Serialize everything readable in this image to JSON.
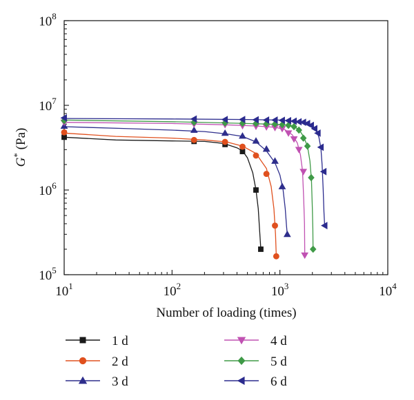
{
  "chart_data": {
    "type": "line",
    "xlabel": "Number of loading (times)",
    "ylabel": "G* (Pa)",
    "ylabel_parts": {
      "symbol": "G",
      "sup": "*",
      "unit": " (Pa)"
    },
    "x_scale": "log",
    "y_scale": "log",
    "xlim": [
      10,
      10000
    ],
    "ylim": [
      100000,
      100000000
    ],
    "x_ticks": [
      {
        "value": 10,
        "base": "10",
        "exp": "1"
      },
      {
        "value": 100,
        "base": "10",
        "exp": "2"
      },
      {
        "value": 1000,
        "base": "10",
        "exp": "3"
      },
      {
        "value": 10000,
        "base": "10",
        "exp": "4"
      }
    ],
    "y_ticks": [
      {
        "value": 100000,
        "base": "10",
        "exp": "5"
      },
      {
        "value": 1000000,
        "base": "10",
        "exp": "6"
      },
      {
        "value": 10000000,
        "base": "10",
        "exp": "7"
      },
      {
        "value": 100000000,
        "base": "10",
        "exp": "8"
      }
    ],
    "grid": false,
    "legend_position": "bottom",
    "series": [
      {
        "name": "1 d",
        "color": "#1a1a1a",
        "marker": "square",
        "curve": [
          [
            10,
            4200000
          ],
          [
            30,
            3900000
          ],
          [
            100,
            3800000
          ],
          [
            200,
            3750000
          ],
          [
            300,
            3550000
          ],
          [
            400,
            3150000
          ],
          [
            450,
            2900000
          ],
          [
            500,
            2400000
          ],
          [
            560,
            1600000
          ],
          [
            600,
            1000000
          ],
          [
            630,
            600000
          ],
          [
            650,
            320000
          ],
          [
            665,
            200000
          ]
        ],
        "markers": [
          [
            10,
            4200000
          ],
          [
            160,
            3750000
          ],
          [
            310,
            3450000
          ],
          [
            450,
            2850000
          ],
          [
            600,
            1000000
          ],
          [
            665,
            200000
          ]
        ]
      },
      {
        "name": "2 d",
        "color": "#e0501e",
        "marker": "circle",
        "curve": [
          [
            10,
            4700000
          ],
          [
            30,
            4300000
          ],
          [
            100,
            4100000
          ],
          [
            200,
            3900000
          ],
          [
            320,
            3700000
          ],
          [
            450,
            3300000
          ],
          [
            600,
            2700000
          ],
          [
            750,
            1800000
          ],
          [
            830,
            1100000
          ],
          [
            880,
            600000
          ],
          [
            910,
            300000
          ],
          [
            925,
            165000
          ]
        ],
        "markers": [
          [
            10,
            4800000
          ],
          [
            160,
            3900000
          ],
          [
            310,
            3700000
          ],
          [
            450,
            3250000
          ],
          [
            600,
            2550000
          ],
          [
            750,
            1550000
          ],
          [
            900,
            380000
          ],
          [
            925,
            165000
          ]
        ]
      },
      {
        "name": "3 d",
        "color": "#2e2e8c",
        "marker": "triangle-up",
        "curve": [
          [
            10,
            5600000
          ],
          [
            40,
            5300000
          ],
          [
            100,
            5100000
          ],
          [
            200,
            4900000
          ],
          [
            320,
            4600000
          ],
          [
            450,
            4300000
          ],
          [
            600,
            3700000
          ],
          [
            750,
            2900000
          ],
          [
            900,
            2100000
          ],
          [
            1000,
            1500000
          ],
          [
            1070,
            1000000
          ],
          [
            1120,
            600000
          ],
          [
            1150,
            380000
          ],
          [
            1170,
            300000
          ]
        ],
        "markers": [
          [
            10,
            5700000
          ],
          [
            160,
            5100000
          ],
          [
            310,
            4700000
          ],
          [
            450,
            4350000
          ],
          [
            600,
            3800000
          ],
          [
            750,
            3050000
          ],
          [
            900,
            2200000
          ],
          [
            1050,
            1100000
          ],
          [
            1170,
            300000
          ]
        ]
      },
      {
        "name": "4 d",
        "color": "#c051b2",
        "marker": "triangle-down",
        "curve": [
          [
            10,
            6300000
          ],
          [
            100,
            6100000
          ],
          [
            300,
            5900000
          ],
          [
            600,
            5700000
          ],
          [
            900,
            5500000
          ],
          [
            1100,
            5200000
          ],
          [
            1300,
            4500000
          ],
          [
            1450,
            3600000
          ],
          [
            1550,
            2600000
          ],
          [
            1620,
            1700000
          ],
          [
            1660,
            800000
          ],
          [
            1690,
            400000
          ],
          [
            1700,
            170000
          ]
        ],
        "markers": [
          [
            10,
            6300000
          ],
          [
            160,
            6000000
          ],
          [
            310,
            5900000
          ],
          [
            450,
            5750000
          ],
          [
            600,
            5650000
          ],
          [
            750,
            5550000
          ],
          [
            900,
            5450000
          ],
          [
            1050,
            5300000
          ],
          [
            1200,
            4700000
          ],
          [
            1350,
            4000000
          ],
          [
            1500,
            3000000
          ],
          [
            1650,
            1650000
          ],
          [
            1700,
            170000
          ]
        ]
      },
      {
        "name": "5 d",
        "color": "#3f9a47",
        "marker": "diamond",
        "curve": [
          [
            10,
            6700000
          ],
          [
            100,
            6400000
          ],
          [
            400,
            6150000
          ],
          [
            800,
            6000000
          ],
          [
            1100,
            5900000
          ],
          [
            1300,
            5700000
          ],
          [
            1500,
            5200000
          ],
          [
            1650,
            4300000
          ],
          [
            1800,
            3300000
          ],
          [
            1900,
            2200000
          ],
          [
            1960,
            1300000
          ],
          [
            2000,
            600000
          ],
          [
            2020,
            350000
          ],
          [
            2030,
            200000
          ]
        ],
        "markers": [
          [
            10,
            6600000
          ],
          [
            160,
            6300000
          ],
          [
            310,
            6200000
          ],
          [
            450,
            6150000
          ],
          [
            600,
            6100000
          ],
          [
            750,
            6050000
          ],
          [
            900,
            6000000
          ],
          [
            1050,
            5900000
          ],
          [
            1200,
            5800000
          ],
          [
            1350,
            5600000
          ],
          [
            1500,
            5100000
          ],
          [
            1650,
            4100000
          ],
          [
            1800,
            3300000
          ],
          [
            1950,
            1400000
          ],
          [
            2030,
            200000
          ]
        ]
      },
      {
        "name": "6 d",
        "color": "#2b2b8e",
        "marker": "triangle-left",
        "curve": [
          [
            10,
            7000000
          ],
          [
            100,
            6900000
          ],
          [
            500,
            6800000
          ],
          [
            1000,
            6700000
          ],
          [
            1400,
            6500000
          ],
          [
            1700,
            6300000
          ],
          [
            1950,
            5900000
          ],
          [
            2150,
            5200000
          ],
          [
            2300,
            4200000
          ],
          [
            2400,
            3100000
          ],
          [
            2460,
            2000000
          ],
          [
            2520,
            1000000
          ],
          [
            2560,
            550000
          ],
          [
            2600,
            380000
          ]
        ],
        "markers": [
          [
            10,
            7100000
          ],
          [
            160,
            6900000
          ],
          [
            310,
            6800000
          ],
          [
            450,
            6800000
          ],
          [
            600,
            6750000
          ],
          [
            750,
            6700000
          ],
          [
            900,
            6700000
          ],
          [
            1050,
            6650000
          ],
          [
            1200,
            6600000
          ],
          [
            1350,
            6500000
          ],
          [
            1500,
            6400000
          ],
          [
            1650,
            6300000
          ],
          [
            1800,
            6100000
          ],
          [
            1950,
            5800000
          ],
          [
            2100,
            5300000
          ],
          [
            2250,
            4700000
          ],
          [
            2400,
            3200000
          ],
          [
            2550,
            1650000
          ],
          [
            2600,
            380000
          ]
        ]
      }
    ]
  }
}
